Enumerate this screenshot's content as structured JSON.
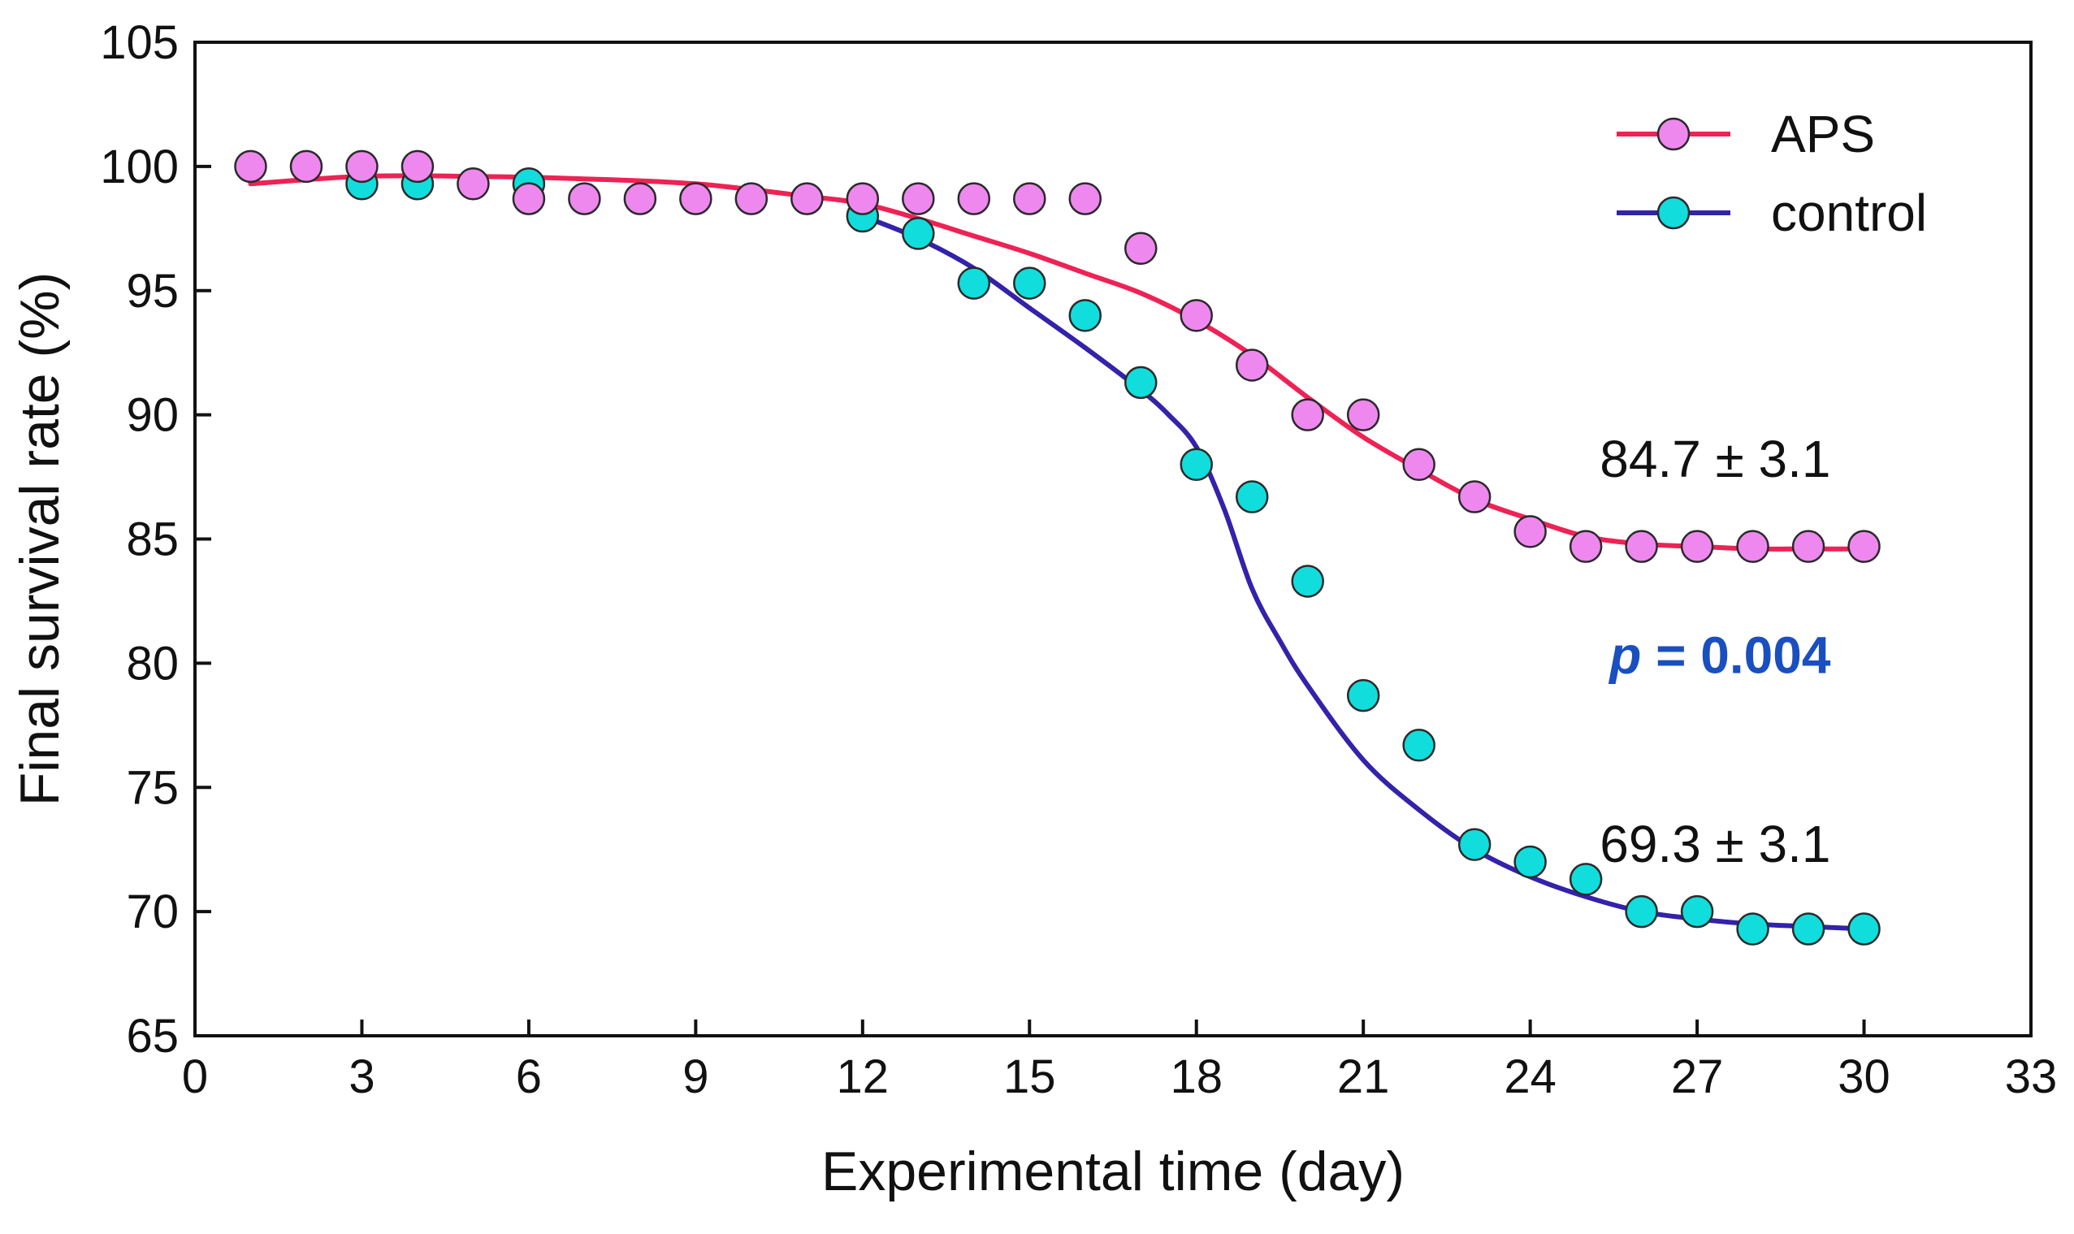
{
  "chart_data": {
    "type": "scatter",
    "xlabel": "Experimental time (day)",
    "ylabel": "Final survival rate (%)",
    "xlim": [
      0,
      33
    ],
    "ylim": [
      65,
      105
    ],
    "xticks": [
      0,
      3,
      6,
      9,
      12,
      15,
      18,
      21,
      24,
      27,
      30,
      33
    ],
    "yticks": [
      65,
      70,
      75,
      80,
      85,
      90,
      95,
      100,
      105
    ],
    "legend_position": "top-right",
    "grid": false,
    "series": [
      {
        "name": "APS",
        "marker_color": "#ee88ee",
        "line_color": "#ee2255",
        "x": [
          1,
          2,
          3,
          4,
          5,
          6,
          7,
          8,
          9,
          10,
          11,
          12,
          13,
          14,
          15,
          16,
          17,
          18,
          19,
          20,
          21,
          22,
          23,
          24,
          25,
          26,
          27,
          28,
          29,
          30
        ],
        "y": [
          100,
          100,
          100,
          100,
          99.3,
          98.7,
          98.7,
          98.7,
          98.7,
          98.7,
          98.7,
          98.7,
          98.7,
          98.7,
          98.7,
          98.7,
          96.7,
          94,
          92,
          90,
          90,
          88,
          86.7,
          85.3,
          84.7,
          84.7,
          84.7,
          84.7,
          84.7,
          84.7
        ],
        "fit_x": [
          1,
          3,
          5,
          7,
          9,
          11,
          12,
          13,
          14,
          15,
          16,
          17,
          18,
          19,
          20,
          21,
          22,
          23,
          24,
          25,
          26,
          27,
          28,
          29,
          30
        ],
        "fit_y": [
          99.3,
          99.6,
          99.6,
          99.5,
          99.3,
          98.8,
          98.5,
          97.9,
          97.2,
          96.5,
          95.7,
          94.9,
          93.8,
          92.4,
          90.7,
          89.1,
          87.8,
          86.6,
          85.8,
          85.1,
          84.8,
          84.7,
          84.6,
          84.6,
          84.6
        ]
      },
      {
        "name": "control",
        "marker_color": "#11dddd",
        "line_color": "#3322aa",
        "x": [
          3,
          4,
          6,
          12,
          13,
          14,
          15,
          16,
          17,
          18,
          19,
          20,
          21,
          22,
          23,
          24,
          25,
          26,
          27,
          28,
          29,
          30
        ],
        "y": [
          99.3,
          99.3,
          99.3,
          98,
          97.3,
          95.3,
          95.3,
          94,
          91.3,
          88,
          86.7,
          83.3,
          78.7,
          76.7,
          72.7,
          72,
          71.3,
          70,
          70,
          69.3,
          69.3,
          69.3
        ],
        "fit_x": [
          12,
          13,
          14,
          15,
          16,
          17,
          17.5,
          18,
          18.5,
          19,
          19.5,
          20,
          21,
          22,
          23,
          24,
          25,
          26,
          27,
          28,
          29,
          30
        ],
        "fit_y": [
          98,
          97.1,
          95.9,
          94.3,
          92.7,
          91,
          90,
          88.7,
          86.2,
          83,
          80.9,
          79.1,
          76.1,
          74.1,
          72.5,
          71.4,
          70.6,
          70,
          69.7,
          69.5,
          69.4,
          69.3
        ]
      }
    ],
    "annotations": [
      {
        "text": "84.7 ± 3.1",
        "x": 29.4,
        "y": 87.5
      },
      {
        "text": "69.3 ± 3.1",
        "x": 29.4,
        "y": 72
      },
      {
        "text_p": "p",
        "text_rest": " = 0.004",
        "x": 29.4,
        "y": 79.6,
        "color": "#1a4fc0"
      }
    ]
  }
}
